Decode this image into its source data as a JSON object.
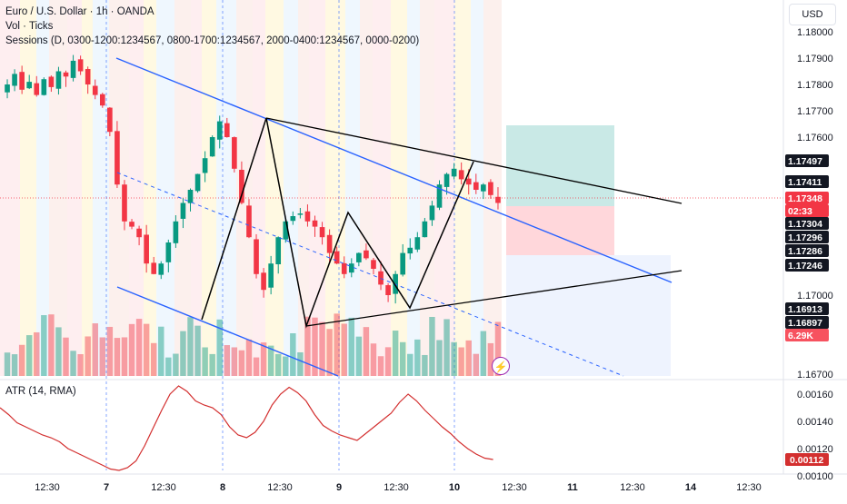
{
  "header": {
    "title": "Euro / U.S. Dollar · 1h · OANDA",
    "vol_label": "Vol · Ticks",
    "sessions_label": "Sessions (D, 0300-1200:1234567, 0800-1700:1234567, 2000-0400:1234567, 0000-0200)"
  },
  "currency_button": "USD",
  "price_axis": {
    "ticks": [
      "1.18000",
      "1.17900",
      "1.17800",
      "1.17700",
      "1.17600",
      "1.17000",
      "1.16700"
    ],
    "tags": [
      {
        "label": "1.17497",
        "bg": "#131722",
        "fg": "#ffffff"
      },
      {
        "label": "1.17411",
        "bg": "#131722",
        "fg": "#ffffff"
      },
      {
        "label": "1.17348",
        "bg": "#f23645",
        "fg": "#ffffff"
      },
      {
        "label": "02:33",
        "bg": "#f23645",
        "fg": "#ffffff"
      },
      {
        "label": "1.17304",
        "bg": "#131722",
        "fg": "#ffffff"
      },
      {
        "label": "1.17296",
        "bg": "#131722",
        "fg": "#ffffff"
      },
      {
        "label": "1.17286",
        "bg": "#131722",
        "fg": "#ffffff"
      },
      {
        "label": "1.17246",
        "bg": "#131722",
        "fg": "#ffffff"
      },
      {
        "label": "1.16913",
        "bg": "#131722",
        "fg": "#ffffff"
      },
      {
        "label": "1.16897",
        "bg": "#131722",
        "fg": "#ffffff"
      },
      {
        "label": "6.29K",
        "bg": "#f7525f",
        "fg": "#ffffff"
      }
    ]
  },
  "atr": {
    "label": "ATR (14, RMA)",
    "ticks": [
      "0.00160",
      "0.00140",
      "0.00120",
      "0.00100"
    ],
    "last_tag": "0.00112",
    "line_color": "#d32f2f"
  },
  "time_axis": [
    "12:30",
    "7",
    "12:30",
    "8",
    "12:30",
    "9",
    "12:30",
    "10",
    "12:30",
    "11",
    "12:30",
    "14",
    "12:30"
  ],
  "colors": {
    "bull": "#089981",
    "bear": "#f23645",
    "channel": "#2962ff",
    "pattern": "#000000",
    "target_zone": "#b2dfdb",
    "stop_zone": "#ffcdd2"
  },
  "icons": {
    "alert": "lightning-icon"
  },
  "chart_data": {
    "type": "candlestick",
    "symbol": "Euro / U.S. Dollar · 1h · OANDA",
    "y_axis_ticks": [
      1.18,
      1.179,
      1.178,
      1.177,
      1.176,
      1.17,
      1.167
    ],
    "x_tick_labels": [
      "12:30",
      "7",
      "12:30",
      "8",
      "12:30",
      "9",
      "12:30",
      "10",
      "12:30",
      "11",
      "12:30",
      "14",
      "12:30"
    ],
    "last_price": 1.17348,
    "countdown": "02:33",
    "volume_last": "6.29K",
    "price_path_shape": [
      1.178,
      1.1784,
      1.1778,
      1.1781,
      1.1776,
      1.1782,
      1.1779,
      1.1785,
      1.1783,
      1.1789,
      1.1785,
      1.178,
      1.1776,
      1.1772,
      1.1762,
      1.1742,
      1.1728,
      1.1726,
      1.1722,
      1.1712,
      1.1708,
      1.1712,
      1.172,
      1.1728,
      1.1735,
      1.174,
      1.1746,
      1.1752,
      1.176,
      1.1766,
      1.176,
      1.1748,
      1.1735,
      1.1722,
      1.1708,
      1.1702,
      1.1712,
      1.1722,
      1.1728,
      1.173,
      1.1731,
      1.1728,
      1.1726,
      1.1722,
      1.1716,
      1.1712,
      1.1708,
      1.1712,
      1.1716,
      1.1714,
      1.171,
      1.1704,
      1.17,
      1.1708,
      1.1716,
      1.1718,
      1.1722,
      1.1728,
      1.1734,
      1.1742,
      1.1746,
      1.1748,
      1.1744,
      1.1742,
      1.174,
      1.1742,
      1.1738,
      1.1735
    ],
    "atr_shape": [
      0.0015,
      0.00145,
      0.00139,
      0.00136,
      0.00133,
      0.0013,
      0.00128,
      0.00125,
      0.0012,
      0.00117,
      0.00114,
      0.00111,
      0.00108,
      0.00105,
      0.00104,
      0.00106,
      0.00111,
      0.00122,
      0.00135,
      0.00148,
      0.0016,
      0.00166,
      0.00162,
      0.00155,
      0.00152,
      0.0015,
      0.00145,
      0.00136,
      0.0013,
      0.00128,
      0.00132,
      0.0014,
      0.00152,
      0.0016,
      0.00165,
      0.00161,
      0.00155,
      0.00145,
      0.00137,
      0.00133,
      0.0013,
      0.00128,
      0.00126,
      0.00131,
      0.00136,
      0.00141,
      0.00146,
      0.00154,
      0.0016,
      0.00155,
      0.00148,
      0.00142,
      0.00136,
      0.00131,
      0.00125,
      0.0012,
      0.00116,
      0.00113,
      0.00112
    ]
  }
}
